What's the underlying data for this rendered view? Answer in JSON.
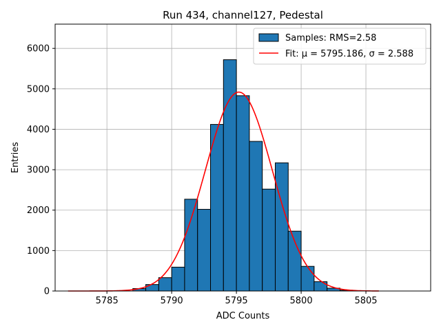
{
  "chart_data": {
    "type": "bar",
    "title": "Run 434, channel127, Pedestal",
    "xlabel": "ADC Counts",
    "ylabel": "Entries",
    "xlim": [
      5781,
      5810
    ],
    "ylim": [
      0,
      6600
    ],
    "xticks": [
      5785,
      5790,
      5795,
      5800,
      5805
    ],
    "yticks": [
      0,
      1000,
      2000,
      3000,
      4000,
      5000,
      6000
    ],
    "grid": true,
    "legend_position": "top-right",
    "colors": {
      "bar": "#1f77b4",
      "fit": "#ff0000"
    },
    "bins": {
      "edges": [
        5787,
        5788,
        5789,
        5790,
        5791,
        5792,
        5793,
        5794,
        5795,
        5796,
        5797,
        5798,
        5799,
        5800,
        5801,
        5802,
        5803,
        5804,
        5805
      ],
      "counts": [
        60,
        160,
        330,
        590,
        2270,
        2020,
        4120,
        5720,
        4830,
        3700,
        2520,
        3170,
        1480,
        610,
        230,
        70,
        20,
        5
      ]
    },
    "series": [
      {
        "name": "Samples: RMS=2.58",
        "kind": "histogram"
      },
      {
        "name": "Fit: μ = 5795.186, σ = 2.588",
        "kind": "gaussian",
        "mu": 5795.186,
        "sigma": 2.588,
        "amplitude": 4920,
        "x_range": [
          5782,
          5806
        ]
      }
    ]
  }
}
